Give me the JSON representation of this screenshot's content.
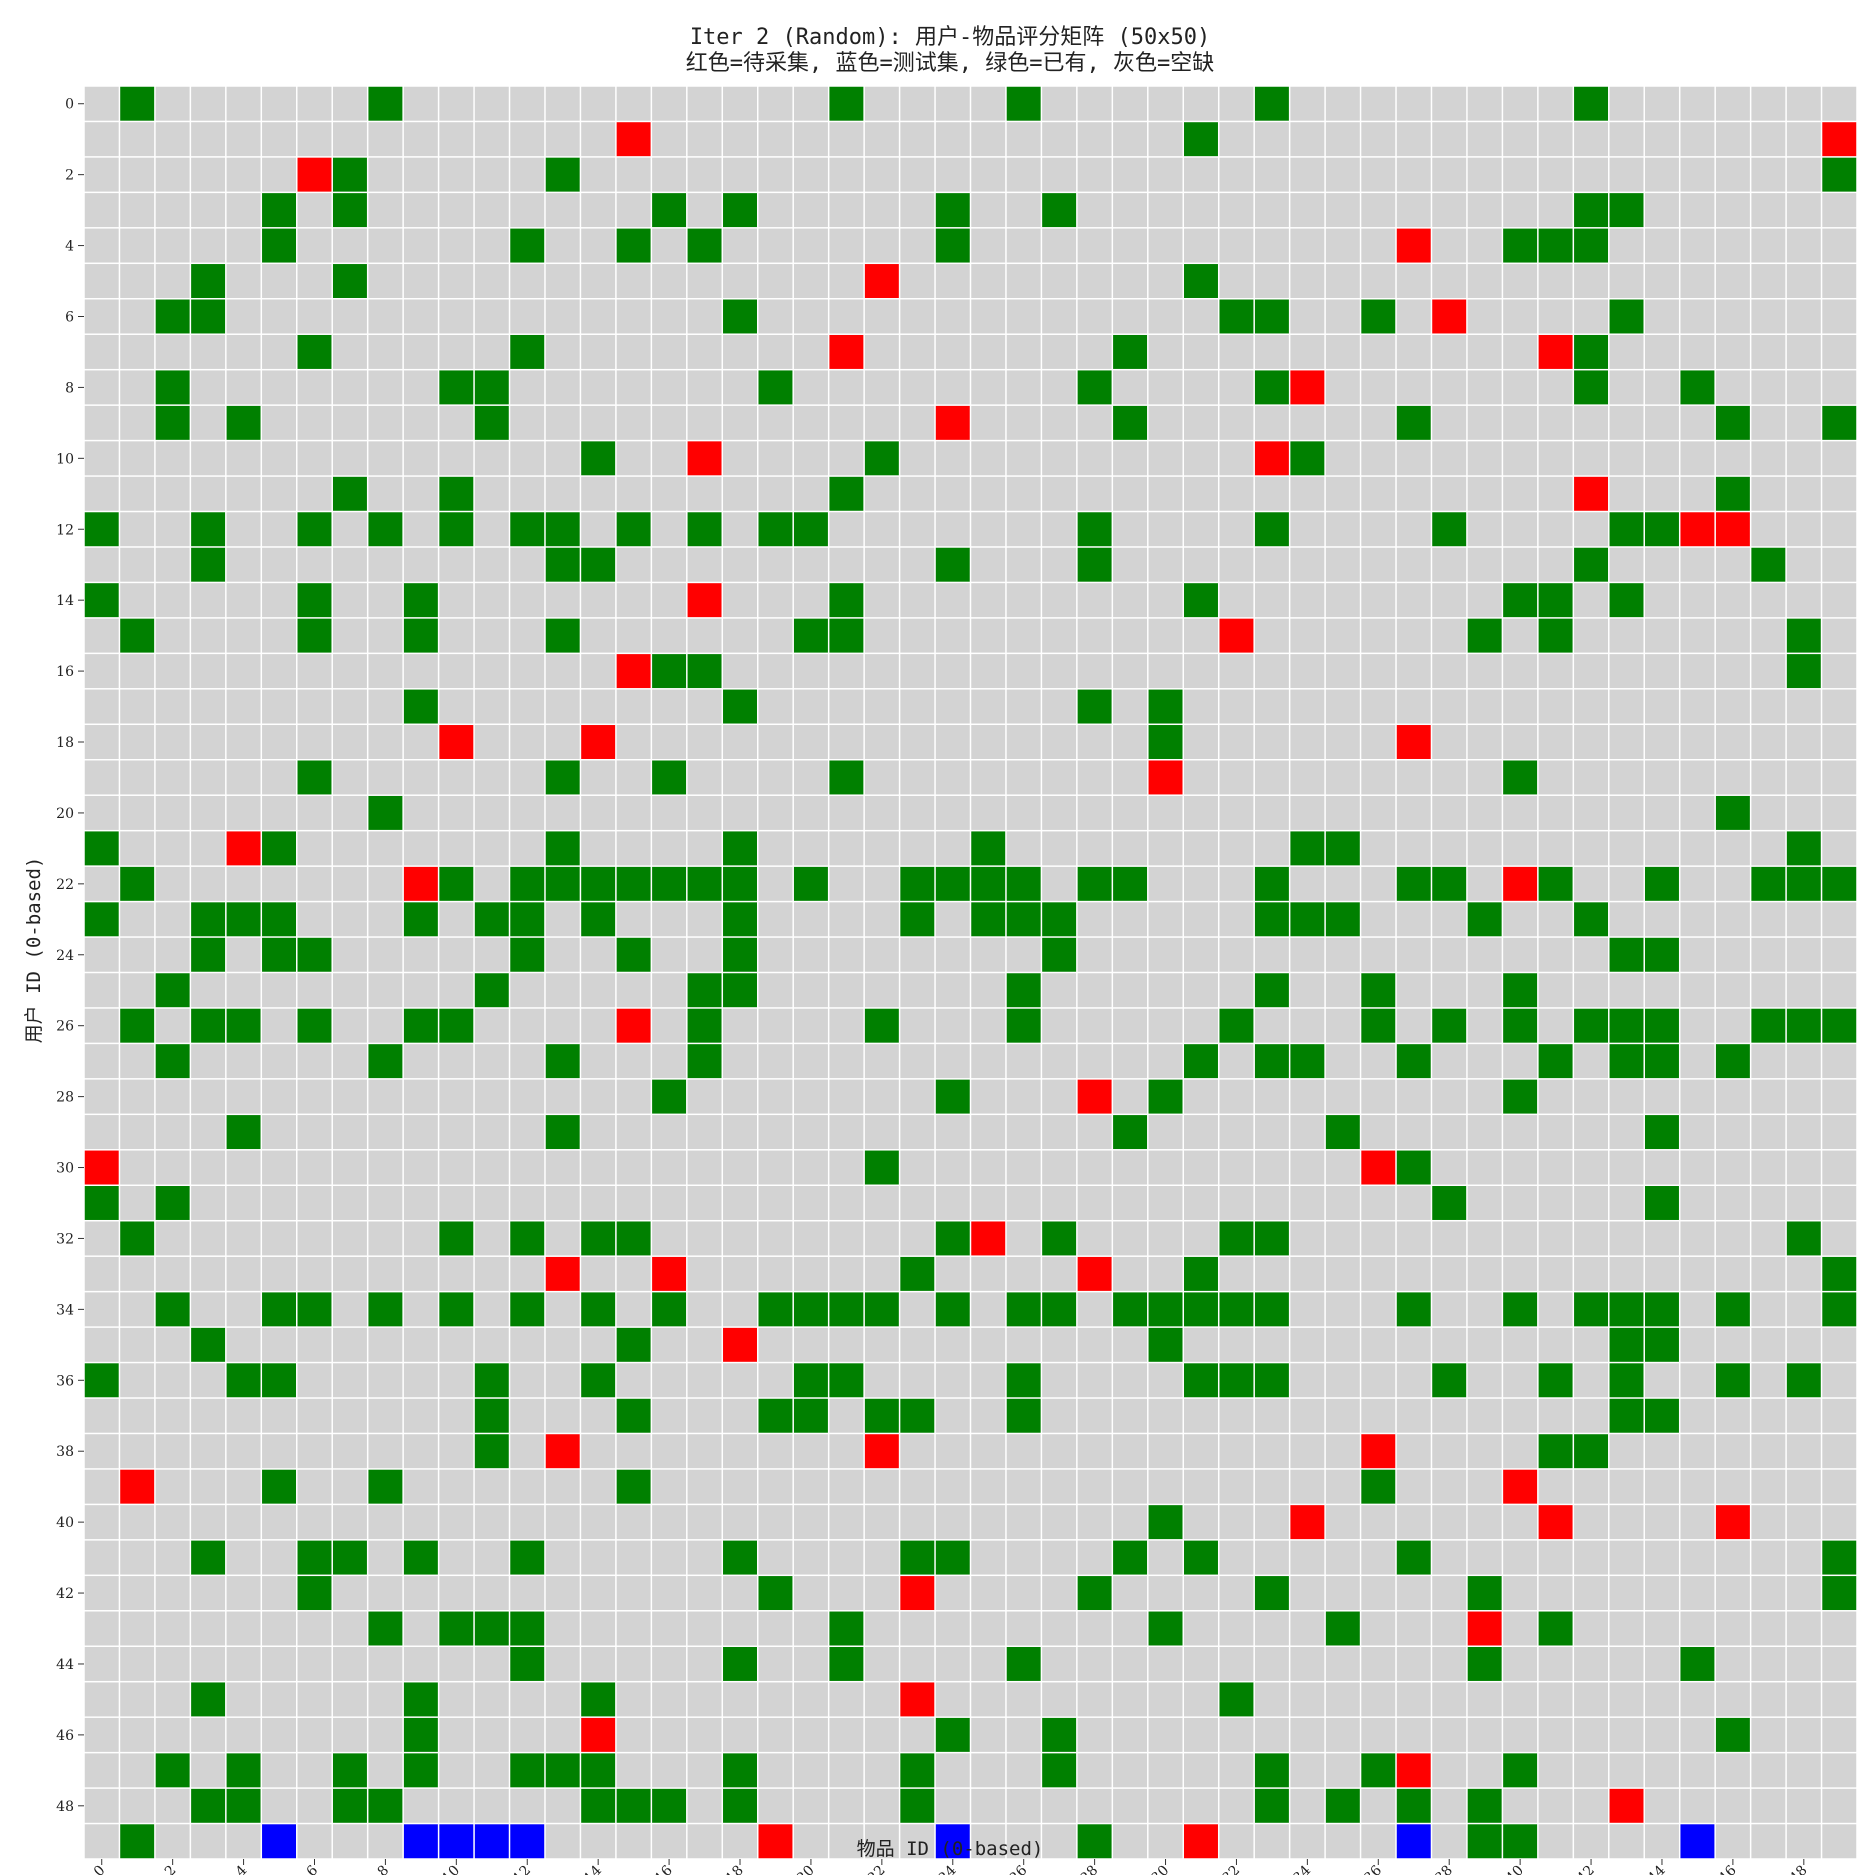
{
  "chart_data": {
    "type": "heatmap",
    "title": "Iter 2 (Random): 用户-物品评分矩阵 (50x50)",
    "subtitle": "红色=待采集, 蓝色=测试集, 绿色=已有, 灰色=空缺",
    "xlabel": "物品 ID (0-based)",
    "ylabel": "用户 ID (0-based)",
    "n_rows": 50,
    "n_cols": 50,
    "x_ticks": [
      0,
      2,
      4,
      6,
      8,
      10,
      12,
      14,
      16,
      18,
      20,
      22,
      24,
      26,
      28,
      30,
      32,
      34,
      36,
      38,
      40,
      42,
      44,
      46,
      48
    ],
    "y_ticks": [
      0,
      2,
      4,
      6,
      8,
      10,
      12,
      14,
      16,
      18,
      20,
      22,
      24,
      26,
      28,
      30,
      32,
      34,
      36,
      38,
      40,
      42,
      44,
      46,
      48
    ],
    "colors": {
      "missing": "#d3d3d3",
      "observed": "#008000",
      "to_collect": "#ff0000",
      "test": "#0000ff",
      "gridline": "#ffffff"
    },
    "green": [
      [
        0,
        [
          1,
          8,
          21,
          26,
          33,
          42
        ]
      ],
      [
        1,
        [
          31
        ]
      ],
      [
        2,
        [
          7,
          13,
          49
        ]
      ],
      [
        3,
        [
          5,
          7,
          16,
          18,
          24,
          27,
          42,
          43
        ]
      ],
      [
        4,
        [
          5,
          12,
          15,
          17,
          24,
          40,
          41,
          42
        ]
      ],
      [
        5,
        [
          3,
          7,
          31
        ]
      ],
      [
        6,
        [
          2,
          3,
          18,
          32,
          33,
          36,
          43
        ]
      ],
      [
        7,
        [
          6,
          12,
          29,
          42
        ]
      ],
      [
        8,
        [
          2,
          10,
          11,
          19,
          28,
          33,
          42,
          45
        ]
      ],
      [
        9,
        [
          2,
          4,
          11,
          29,
          37,
          46,
          49
        ]
      ],
      [
        10,
        [
          14,
          22,
          34
        ]
      ],
      [
        11,
        [
          7,
          10,
          21,
          46
        ]
      ],
      [
        12,
        [
          0,
          3,
          6,
          8,
          10,
          12,
          13,
          15,
          17,
          19,
          20,
          28,
          33,
          38,
          43,
          44
        ]
      ],
      [
        13,
        [
          3,
          13,
          14,
          24,
          28,
          42,
          47
        ]
      ],
      [
        14,
        [
          0,
          6,
          9,
          21,
          31,
          40,
          41,
          43
        ]
      ],
      [
        15,
        [
          1,
          6,
          9,
          13,
          20,
          21,
          39,
          41,
          48
        ]
      ],
      [
        16,
        [
          16,
          17,
          48
        ]
      ],
      [
        17,
        [
          9,
          18,
          28,
          30
        ]
      ],
      [
        18,
        [
          30
        ]
      ],
      [
        19,
        [
          6,
          13,
          16,
          21,
          40
        ]
      ],
      [
        20,
        [
          8,
          46
        ]
      ],
      [
        21,
        [
          0,
          5,
          13,
          18,
          25,
          34,
          35,
          48
        ]
      ],
      [
        22,
        [
          1,
          10,
          12,
          13,
          14,
          15,
          16,
          17,
          18,
          20,
          23,
          24,
          25,
          26,
          28,
          29,
          33,
          37,
          38,
          41,
          44,
          47,
          48,
          49
        ]
      ],
      [
        23,
        [
          0,
          3,
          4,
          5,
          9,
          11,
          12,
          14,
          18,
          23,
          25,
          26,
          27,
          33,
          34,
          35,
          39,
          42
        ]
      ],
      [
        24,
        [
          3,
          5,
          6,
          12,
          15,
          18,
          27,
          43,
          44
        ]
      ],
      [
        25,
        [
          2,
          11,
          17,
          18,
          26,
          33,
          36,
          40
        ]
      ],
      [
        26,
        [
          1,
          3,
          4,
          6,
          9,
          10,
          17,
          22,
          26,
          32,
          36,
          38,
          40,
          42,
          43,
          44,
          47,
          48,
          49
        ]
      ],
      [
        27,
        [
          2,
          8,
          13,
          17,
          31,
          33,
          34,
          37,
          41,
          43,
          44,
          46
        ]
      ],
      [
        28,
        [
          16,
          24,
          30,
          40
        ]
      ],
      [
        29,
        [
          4,
          13,
          29,
          35,
          44
        ]
      ],
      [
        30,
        [
          22,
          37
        ]
      ],
      [
        31,
        [
          0,
          2,
          38,
          44
        ]
      ],
      [
        32,
        [
          1,
          10,
          12,
          14,
          15,
          24,
          27,
          32,
          33,
          48
        ]
      ],
      [
        33,
        [
          23,
          31,
          49
        ]
      ],
      [
        34,
        [
          2,
          5,
          6,
          8,
          10,
          12,
          14,
          16,
          19,
          20,
          21,
          22,
          24,
          26,
          27,
          29,
          30,
          31,
          32,
          33,
          37,
          40,
          42,
          43,
          44,
          46,
          49
        ]
      ],
      [
        35,
        [
          3,
          15,
          30,
          43,
          44
        ]
      ],
      [
        36,
        [
          0,
          4,
          5,
          11,
          14,
          20,
          21,
          26,
          31,
          32,
          33,
          38,
          41,
          43,
          46,
          48
        ]
      ],
      [
        37,
        [
          11,
          15,
          19,
          20,
          22,
          23,
          26,
          43,
          44
        ]
      ],
      [
        38,
        [
          11,
          41,
          42
        ]
      ],
      [
        39,
        [
          5,
          8,
          15,
          36
        ]
      ],
      [
        40,
        [
          30
        ]
      ],
      [
        41,
        [
          3,
          6,
          7,
          9,
          12,
          18,
          23,
          24,
          29,
          31,
          37,
          49
        ]
      ],
      [
        42,
        [
          6,
          19,
          28,
          33,
          39,
          49
        ]
      ],
      [
        43,
        [
          8,
          10,
          11,
          12,
          21,
          30,
          35,
          41
        ]
      ],
      [
        44,
        [
          12,
          18,
          21,
          26,
          39,
          45
        ]
      ],
      [
        45,
        [
          3,
          9,
          14,
          32
        ]
      ],
      [
        46,
        [
          9,
          24,
          27,
          46
        ]
      ],
      [
        47,
        [
          2,
          4,
          7,
          9,
          12,
          13,
          14,
          18,
          23,
          27,
          33,
          36,
          40
        ]
      ],
      [
        48,
        [
          3,
          4,
          7,
          8,
          14,
          15,
          16,
          18,
          23,
          33,
          35,
          37,
          39
        ]
      ],
      [
        49,
        [
          1,
          28,
          39,
          40
        ]
      ]
    ],
    "red": [
      [
        1,
        15
      ],
      [
        1,
        49
      ],
      [
        2,
        6
      ],
      [
        4,
        37
      ],
      [
        5,
        22
      ],
      [
        6,
        38
      ],
      [
        7,
        21
      ],
      [
        7,
        41
      ],
      [
        8,
        34
      ],
      [
        9,
        24
      ],
      [
        10,
        17
      ],
      [
        10,
        33
      ],
      [
        11,
        42
      ],
      [
        12,
        45
      ],
      [
        12,
        46
      ],
      [
        14,
        17
      ],
      [
        15,
        32
      ],
      [
        16,
        15
      ],
      [
        18,
        10
      ],
      [
        18,
        14
      ],
      [
        18,
        37
      ],
      [
        19,
        30
      ],
      [
        21,
        4
      ],
      [
        22,
        9
      ],
      [
        22,
        40
      ],
      [
        26,
        15
      ],
      [
        28,
        28
      ],
      [
        30,
        0
      ],
      [
        30,
        36
      ],
      [
        32,
        25
      ],
      [
        33,
        13
      ],
      [
        33,
        16
      ],
      [
        33,
        28
      ],
      [
        35,
        18
      ],
      [
        38,
        13
      ],
      [
        38,
        22
      ],
      [
        38,
        36
      ],
      [
        39,
        1
      ],
      [
        39,
        40
      ],
      [
        40,
        34
      ],
      [
        40,
        41
      ],
      [
        40,
        46
      ],
      [
        42,
        23
      ],
      [
        43,
        39
      ],
      [
        45,
        23
      ],
      [
        46,
        14
      ],
      [
        47,
        37
      ],
      [
        48,
        43
      ],
      [
        49,
        19
      ],
      [
        49,
        31
      ]
    ],
    "blue": [
      [
        49,
        5
      ],
      [
        49,
        9
      ],
      [
        49,
        10
      ],
      [
        49,
        11
      ],
      [
        49,
        12
      ],
      [
        49,
        24
      ],
      [
        49,
        37
      ],
      [
        49,
        45
      ]
    ]
  }
}
